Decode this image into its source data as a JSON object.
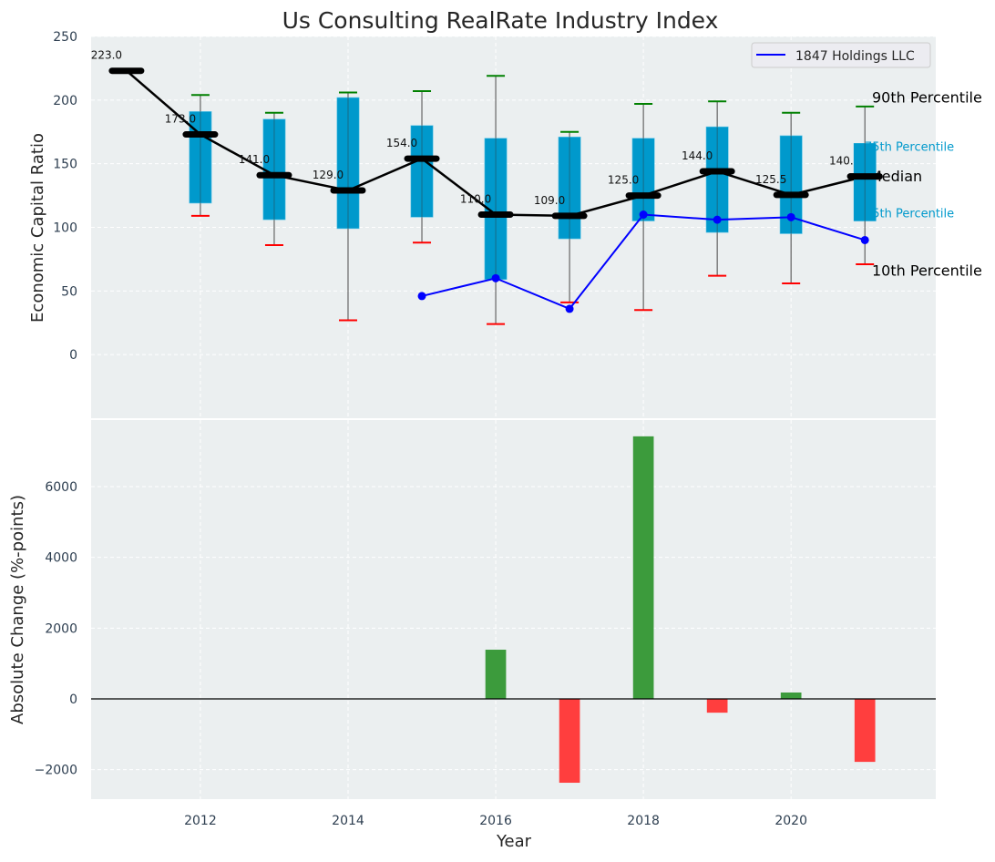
{
  "chart_data": [
    {
      "type": "box",
      "title": "Us Consulting RealRate Industry Index",
      "xlabel": "",
      "ylabel": "Economic Capital Ratio",
      "xlim": [
        2010.52,
        2021.96
      ],
      "ylim": [
        -50,
        250
      ],
      "yticks": [
        0,
        50,
        100,
        150,
        200,
        250
      ],
      "grid": true,
      "legend": {
        "placement": "top-right",
        "entries": [
          "1847 Holdings LLC"
        ]
      },
      "years": [
        2011,
        2012,
        2013,
        2014,
        2015,
        2016,
        2017,
        2018,
        2019,
        2020,
        2021
      ],
      "median": [
        223.0,
        173.0,
        141.0,
        129.0,
        154.0,
        110.0,
        109.0,
        125.0,
        144.0,
        125.5,
        140.0
      ],
      "median_labels": [
        "223.0",
        "173.0",
        "141.0",
        "129.0",
        "154.0",
        "110.0",
        "109.0",
        "125.0",
        "144.0",
        "125.5",
        "140.0"
      ],
      "p25": [
        null,
        119,
        106,
        99,
        108,
        59,
        91,
        105,
        96,
        95,
        105
      ],
      "p75": [
        null,
        191,
        185,
        202,
        180,
        170,
        171,
        170,
        179,
        172,
        166
      ],
      "p10": [
        null,
        109,
        86,
        27,
        88,
        24,
        41,
        35,
        62,
        56,
        71
      ],
      "p90": [
        null,
        204,
        190,
        206,
        207,
        219,
        175,
        197,
        199,
        190,
        195
      ],
      "company": {
        "name": "1847 Holdings LLC",
        "years": [
          2015,
          2016,
          2017,
          2018,
          2019,
          2020,
          2021
        ],
        "values": [
          46,
          60,
          36,
          110,
          106,
          108,
          90
        ]
      },
      "annotations": {
        "p90": "90th Percentile",
        "p75": "75th Percentile",
        "median": "Median",
        "p25": "25th Percentile",
        "p10": "10th Percentile"
      }
    },
    {
      "type": "bar",
      "xlabel": "Year",
      "ylabel": "Absolute Change (%-points)",
      "xlim": [
        2010.52,
        2021.96
      ],
      "ylim": [
        -2833,
        7880
      ],
      "xticks": [
        2012,
        2014,
        2016,
        2018,
        2020
      ],
      "yticks": [
        -2000,
        0,
        2000,
        4000,
        6000
      ],
      "ytick_labels": [
        "−2000",
        "0",
        "2000",
        "4000",
        "6000"
      ],
      "grid": true,
      "years": [
        2016,
        2017,
        2018,
        2019,
        2020,
        2021
      ],
      "values": [
        1390,
        -2370,
        7420,
        -390,
        180,
        -1780
      ]
    }
  ],
  "colors": {
    "box": "#0099cc",
    "median": "#000000",
    "company": "#0000ff",
    "p90": "#008000",
    "p10": "#ff0000",
    "pos": "#3c9b3c",
    "neg": "#ff3e3e",
    "bg": "#ebeff0"
  }
}
